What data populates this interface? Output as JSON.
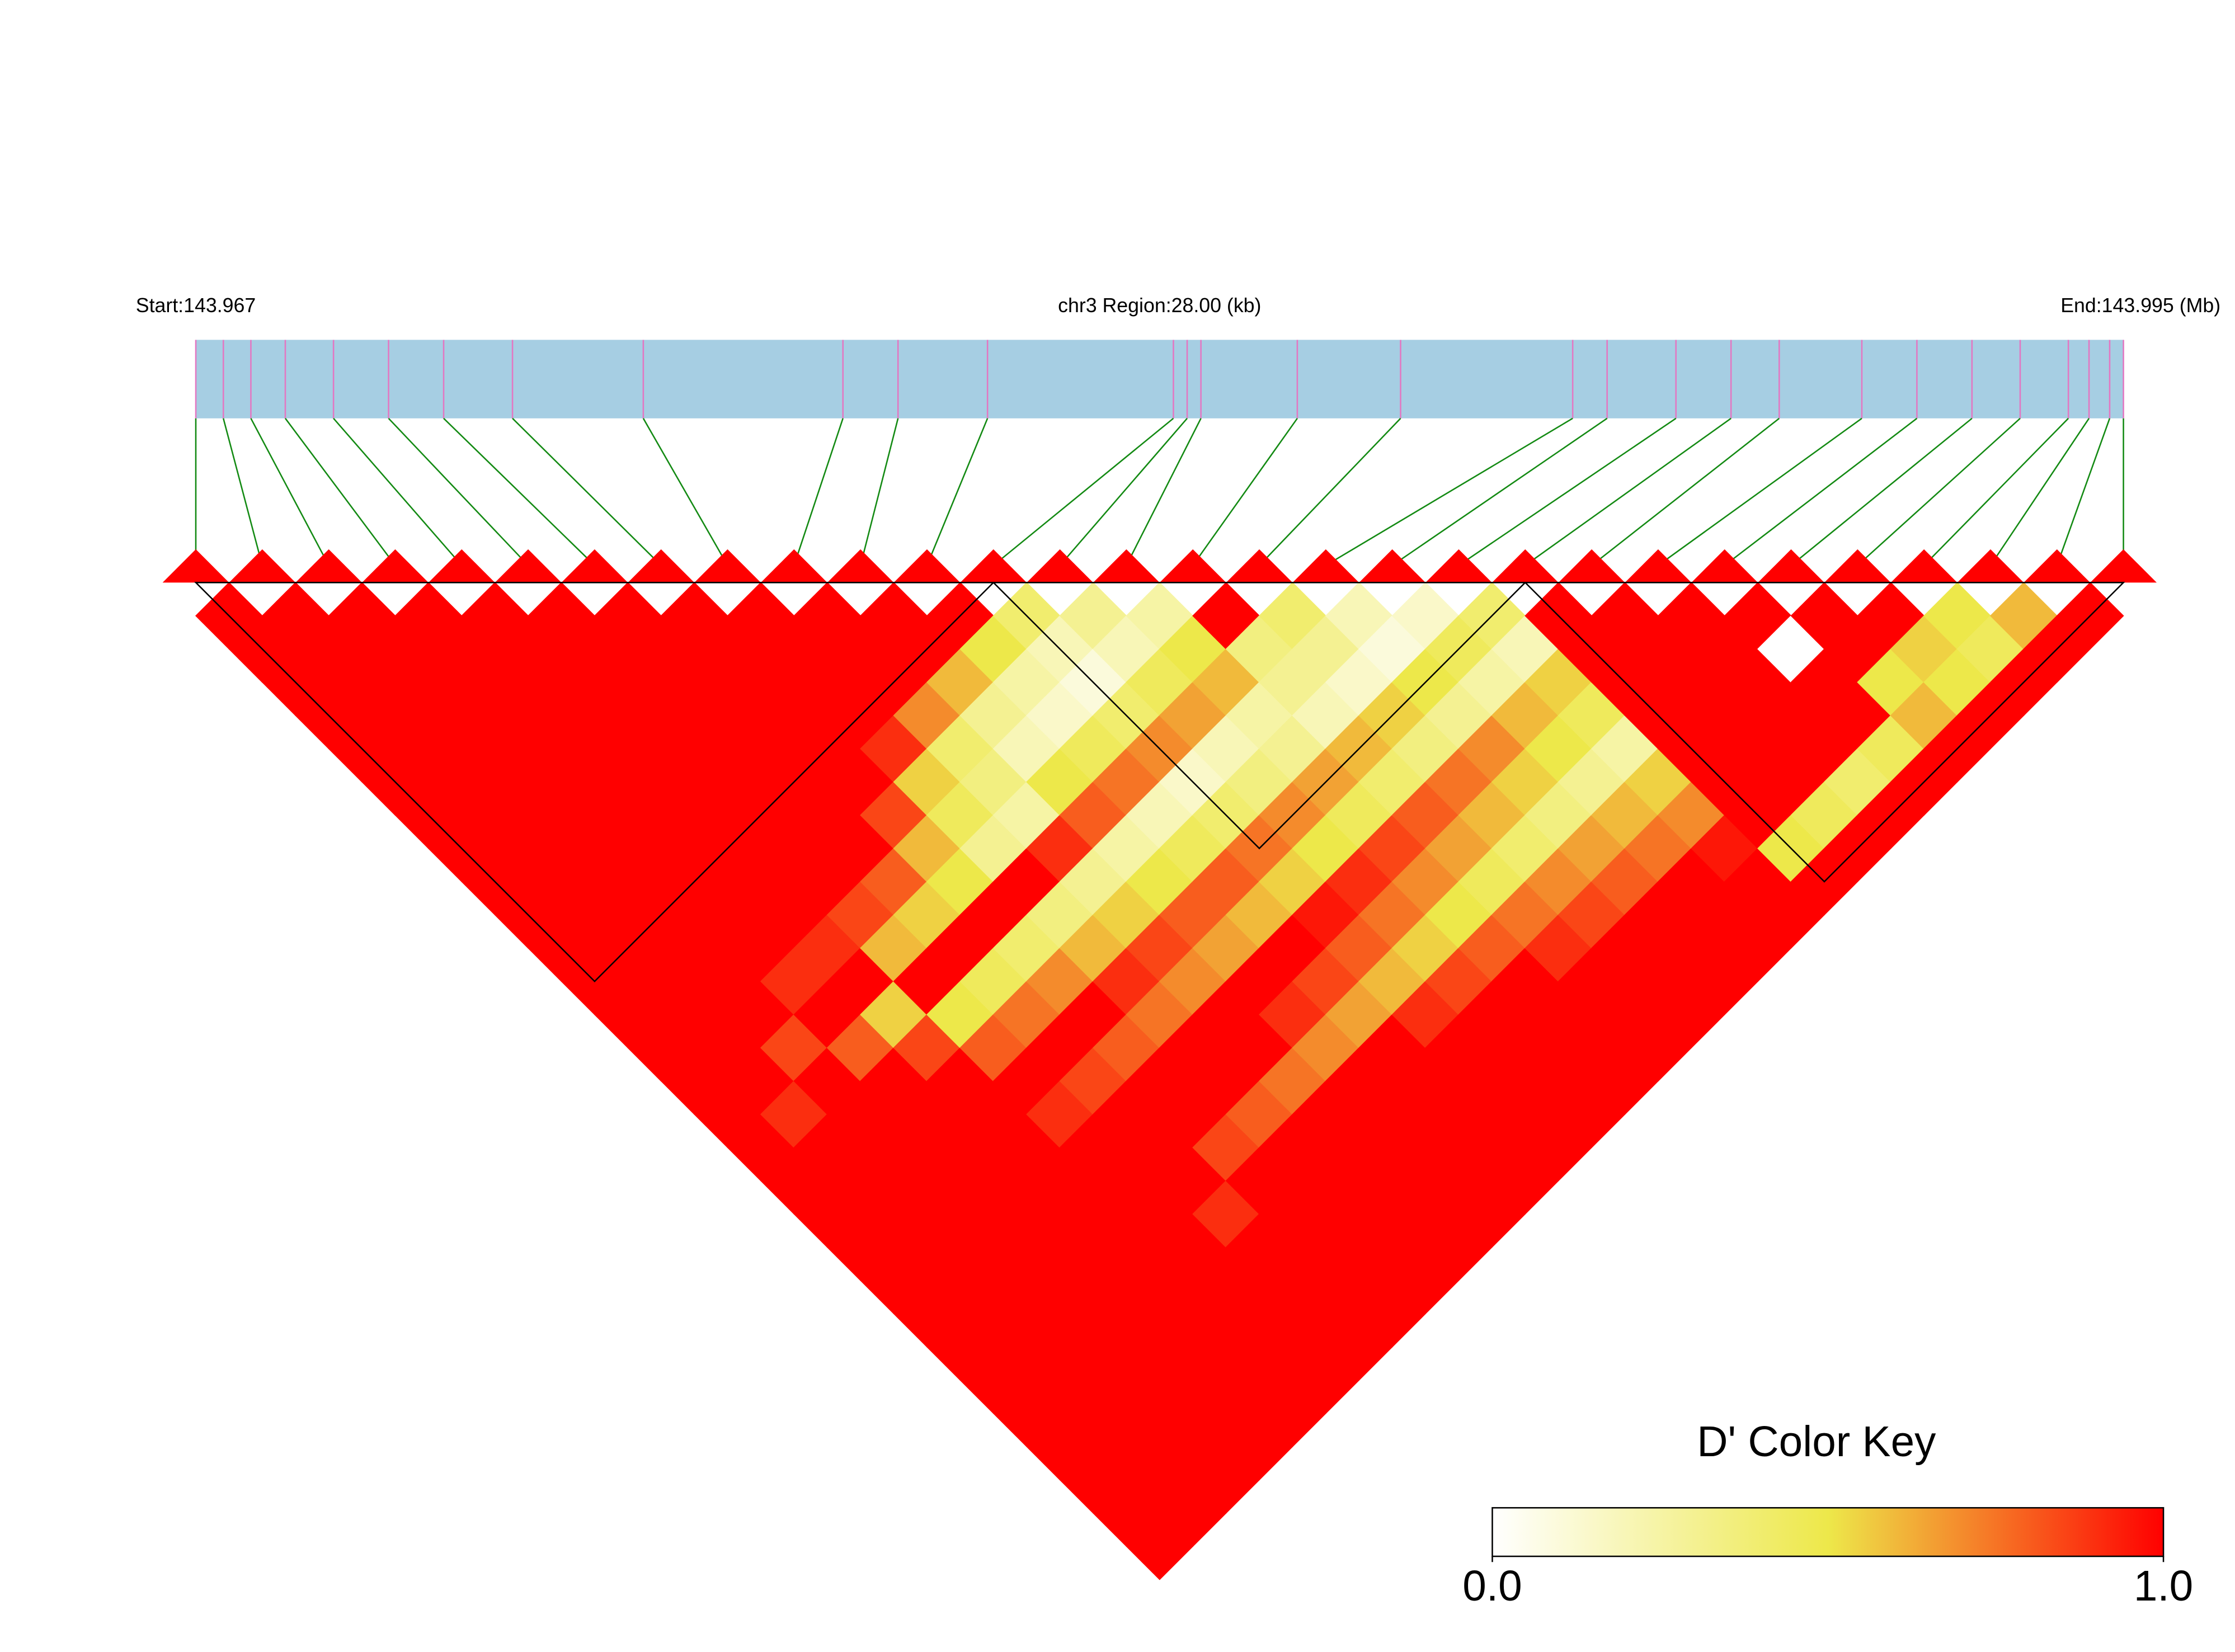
{
  "chart_data": {
    "type": "ld-heatmap",
    "start_label": "Start:143.967",
    "region_label": "chr3 Region:28.00 (kb)",
    "end_label": "End:143.995 (Mb)",
    "xlim": [
      143.967,
      143.995
    ],
    "positions": [
      143.967,
      143.9674,
      143.9678,
      143.9683,
      143.969,
      143.9698,
      143.9706,
      143.9716,
      143.9735,
      143.9764,
      143.9772,
      143.9785,
      143.9812,
      143.9814,
      143.9816,
      143.983,
      143.9845,
      143.987,
      143.9875,
      143.9885,
      143.9893,
      143.99,
      143.9912,
      143.992,
      143.9928,
      143.9935,
      143.9942,
      143.9945,
      143.9948,
      143.995
    ],
    "ld": [
      [
        1,
        1,
        1,
        1,
        1,
        1,
        1,
        1,
        1,
        1,
        1,
        1,
        1,
        1,
        1,
        1,
        1,
        1,
        1,
        1,
        1,
        1,
        1,
        1,
        1,
        1,
        1,
        1,
        1
      ],
      [
        1,
        1,
        1,
        1,
        1,
        1,
        1,
        1,
        1,
        1,
        1,
        1,
        1,
        1,
        1,
        0.9,
        1,
        1,
        1,
        1,
        1,
        1,
        1,
        1,
        1,
        1,
        1,
        1
      ],
      [
        1,
        1,
        1,
        1,
        1,
        1,
        1,
        1,
        1,
        1,
        1,
        1,
        1,
        0.85,
        1,
        1,
        1,
        1,
        1,
        1,
        1,
        1,
        1,
        1,
        1,
        1,
        1
      ],
      [
        1,
        1,
        1,
        1,
        1,
        1,
        1,
        1,
        1,
        1,
        1,
        0.9,
        1,
        0.8,
        1,
        1,
        1,
        1,
        1,
        1,
        1,
        1,
        1,
        1,
        1,
        1
      ],
      [
        1,
        1,
        1,
        1,
        1,
        1,
        1,
        1,
        1,
        1,
        0.9,
        1,
        0.55,
        0.85,
        1,
        1,
        1,
        1,
        1,
        1,
        1,
        1,
        1,
        1,
        1
      ],
      [
        1,
        1,
        1,
        1,
        1,
        1,
        1,
        1,
        1,
        0.85,
        0.6,
        1,
        0.5,
        0.8,
        1,
        0.9,
        1,
        1,
        1,
        1,
        1,
        1,
        1,
        1
      ],
      [
        1,
        1,
        1,
        1,
        1,
        1,
        1,
        1,
        0.8,
        0.55,
        1,
        0.45,
        0.75,
        1,
        0.85,
        1,
        1,
        1,
        0.9,
        1,
        1,
        1,
        1
      ],
      [
        1,
        1,
        1,
        1,
        1,
        1,
        0.85,
        0.6,
        0.5,
        1,
        0.4,
        0.7,
        1,
        0.8,
        1,
        1,
        0.85,
        1,
        1,
        1,
        1,
        1
      ],
      [
        1,
        1,
        1,
        1,
        0.9,
        0.55,
        0.45,
        0.3,
        1,
        0.35,
        0.6,
        0.9,
        0.75,
        1,
        1,
        0.8,
        1,
        1,
        1,
        1,
        1
      ],
      [
        1,
        1,
        1,
        0.7,
        0.4,
        0.35,
        0.25,
        0.9,
        0.3,
        0.55,
        0.85,
        0.7,
        1,
        1,
        0.75,
        1,
        1,
        1,
        1,
        1
      ],
      [
        1,
        1,
        0.6,
        0.3,
        0.2,
        0.5,
        0.8,
        0.25,
        0.5,
        0.8,
        0.65,
        1,
        0.9,
        0.7,
        1,
        1,
        1,
        1,
        1
      ],
      [
        1,
        0.5,
        0.25,
        0.15,
        0.45,
        0.75,
        0.2,
        0.45,
        0.8,
        0.6,
        1,
        0.85,
        0.65,
        1,
        1,
        1,
        1,
        1
      ],
      [
        0.4,
        0.2,
        0.1,
        0.4,
        0.7,
        0.15,
        0.4,
        0.75,
        0.55,
        0.95,
        0.8,
        0.6,
        0.9,
        1,
        1,
        1,
        1
      ],
      [
        0.3,
        0.2,
        0.45,
        0.65,
        0.2,
        0.35,
        0.7,
        0.5,
        0.9,
        0.75,
        0.55,
        0.85,
        1,
        1,
        1,
        1
      ],
      [
        0.25,
        0.5,
        0.6,
        0.25,
        0.3,
        0.65,
        0.45,
        0.85,
        0.7,
        0.5,
        0.8,
        1,
        1,
        1,
        1
      ],
      [
        1,
        0.35,
        0.3,
        0.2,
        0.6,
        0.4,
        0.8,
        0.65,
        0.45,
        0.75,
        0.9,
        1,
        1,
        1
      ],
      [
        0.4,
        0.3,
        0.15,
        0.55,
        0.35,
        0.75,
        0.6,
        0.4,
        0.7,
        0.85,
        1,
        1,
        1
      ],
      [
        0.2,
        0.1,
        0.5,
        0.3,
        0.7,
        0.55,
        0.35,
        0.65,
        0.8,
        1,
        1,
        1
      ],
      [
        0.15,
        0.45,
        0.25,
        0.6,
        0.5,
        0.3,
        0.6,
        0.75,
        1,
        1,
        1
      ],
      [
        0.4,
        0.2,
        0.55,
        0.45,
        0.25,
        0.55,
        0.7,
        0.95,
        1,
        1
      ],
      [
        1,
        1,
        1,
        1,
        1,
        1,
        1,
        0.5,
        1
      ],
      [
        1,
        1,
        1,
        1,
        1,
        1,
        0.45,
        1
      ],
      [
        1,
        1,
        1,
        1,
        1,
        0.4,
        1
      ],
      [
        1,
        0,
        1,
        1,
        0.45,
        1
      ],
      [
        1,
        1,
        0.5,
        0.6,
        1
      ],
      [
        1,
        0.55,
        0.5,
        1
      ],
      [
        0.5,
        0.45,
        1
      ],
      [
        0.6,
        1
      ],
      [
        1
      ]
    ],
    "blocks": [
      [
        0,
        12
      ],
      [
        12,
        20
      ],
      [
        20,
        29
      ]
    ],
    "color_scale": [
      "#ffffff",
      "#ede84a",
      "#ff0000"
    ],
    "legend_title": "D' Color Key",
    "legend_lim": [
      0,
      1
    ],
    "legend_ticks": [
      {
        "value": 0,
        "label": "0.0"
      },
      {
        "value": 1,
        "label": "1.0"
      }
    ],
    "bar_color": "#a6cee3",
    "snp_color": "#e377c2",
    "connector_color": "#138a13"
  }
}
